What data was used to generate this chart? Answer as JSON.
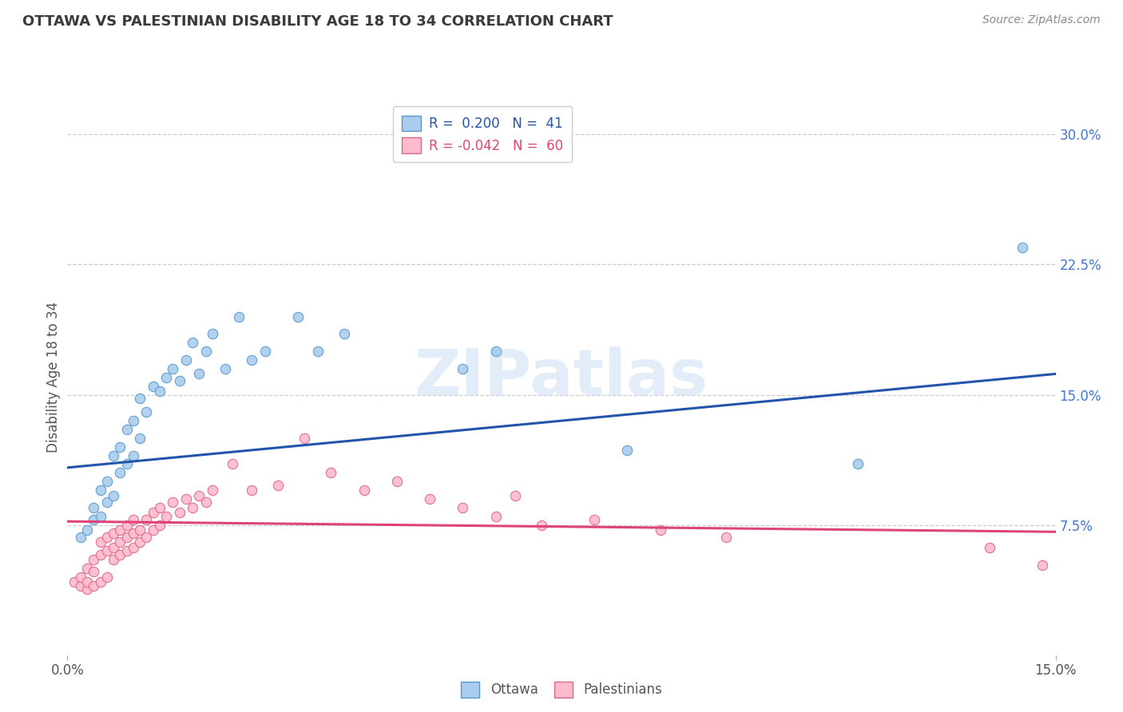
{
  "title": "OTTAWA VS PALESTINIAN DISABILITY AGE 18 TO 34 CORRELATION CHART",
  "source": "Source: ZipAtlas.com",
  "ylabel": "Disability Age 18 to 34",
  "xlim": [
    0.0,
    0.15
  ],
  "ylim": [
    0.0,
    0.32
  ],
  "yticks": [
    0.075,
    0.15,
    0.225,
    0.3
  ],
  "ytick_labels": [
    "7.5%",
    "15.0%",
    "22.5%",
    "30.0%"
  ],
  "xticks": [
    0.0,
    0.15
  ],
  "xtick_labels": [
    "0.0%",
    "15.0%"
  ],
  "title_color": "#3a3a3a",
  "source_color": "#888888",
  "grid_color": "#cccccc",
  "background_color": "#ffffff",
  "watermark_text": "ZIPatlas",
  "legend_r1": "R =  0.200   N =  41",
  "legend_r2": "R = -0.042   N =  60",
  "ottawa_color": "#aaccee",
  "ottawa_edge": "#5599cc",
  "palestinian_color": "#ffbbcc",
  "palestinian_edge": "#dd6688",
  "trend_ottawa_color": "#2255aa",
  "trend_palestinian_color": "#dd4477",
  "ottawa_trend_x": [
    0.0,
    0.15
  ],
  "ottawa_trend_y": [
    0.108,
    0.162
  ],
  "palestinian_trend_x": [
    0.0,
    0.15
  ],
  "palestinian_trend_y": [
    0.077,
    0.071
  ],
  "ottawa_x": [
    0.002,
    0.003,
    0.004,
    0.004,
    0.005,
    0.005,
    0.006,
    0.006,
    0.007,
    0.007,
    0.008,
    0.008,
    0.009,
    0.009,
    0.01,
    0.01,
    0.011,
    0.011,
    0.012,
    0.013,
    0.014,
    0.015,
    0.016,
    0.017,
    0.018,
    0.019,
    0.02,
    0.021,
    0.022,
    0.024,
    0.026,
    0.028,
    0.03,
    0.035,
    0.038,
    0.042,
    0.06,
    0.065,
    0.085,
    0.12,
    0.145
  ],
  "ottawa_y": [
    0.068,
    0.072,
    0.078,
    0.085,
    0.08,
    0.095,
    0.088,
    0.1,
    0.092,
    0.115,
    0.105,
    0.12,
    0.11,
    0.13,
    0.115,
    0.135,
    0.125,
    0.148,
    0.14,
    0.155,
    0.152,
    0.16,
    0.165,
    0.158,
    0.17,
    0.18,
    0.162,
    0.175,
    0.185,
    0.165,
    0.195,
    0.17,
    0.175,
    0.195,
    0.175,
    0.185,
    0.165,
    0.175,
    0.118,
    0.11,
    0.235
  ],
  "palestinian_x": [
    0.001,
    0.002,
    0.002,
    0.003,
    0.003,
    0.003,
    0.004,
    0.004,
    0.004,
    0.005,
    0.005,
    0.005,
    0.006,
    0.006,
    0.006,
    0.007,
    0.007,
    0.007,
    0.008,
    0.008,
    0.008,
    0.009,
    0.009,
    0.009,
    0.01,
    0.01,
    0.01,
    0.011,
    0.011,
    0.012,
    0.012,
    0.013,
    0.013,
    0.014,
    0.014,
    0.015,
    0.016,
    0.017,
    0.018,
    0.019,
    0.02,
    0.021,
    0.022,
    0.025,
    0.028,
    0.032,
    0.036,
    0.04,
    0.045,
    0.05,
    0.055,
    0.06,
    0.065,
    0.068,
    0.072,
    0.08,
    0.09,
    0.1,
    0.14,
    0.148
  ],
  "palestinian_y": [
    0.042,
    0.04,
    0.045,
    0.038,
    0.042,
    0.05,
    0.04,
    0.048,
    0.055,
    0.042,
    0.058,
    0.065,
    0.045,
    0.06,
    0.068,
    0.055,
    0.062,
    0.07,
    0.058,
    0.065,
    0.072,
    0.06,
    0.068,
    0.075,
    0.062,
    0.07,
    0.078,
    0.065,
    0.072,
    0.068,
    0.078,
    0.072,
    0.082,
    0.075,
    0.085,
    0.08,
    0.088,
    0.082,
    0.09,
    0.085,
    0.092,
    0.088,
    0.095,
    0.11,
    0.095,
    0.098,
    0.125,
    0.105,
    0.095,
    0.1,
    0.09,
    0.085,
    0.08,
    0.092,
    0.075,
    0.078,
    0.072,
    0.068,
    0.062,
    0.052
  ]
}
